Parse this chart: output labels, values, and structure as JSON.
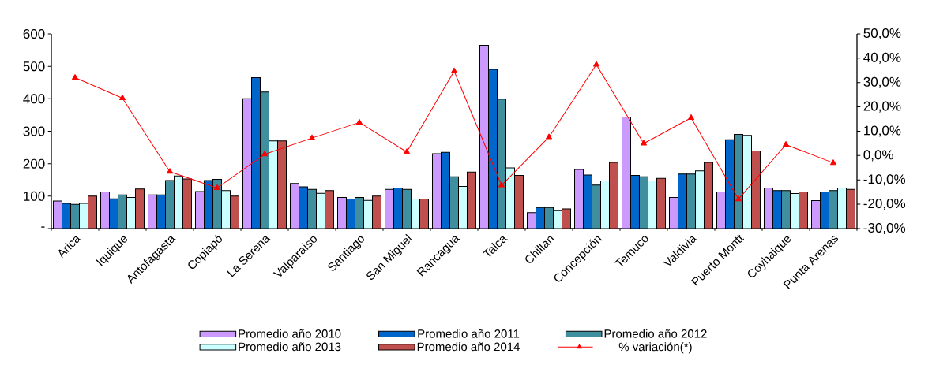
{
  "chart_data": {
    "type": "bar",
    "categories": [
      "Arica",
      "Iquique",
      "Antofagasta",
      "Copiapó",
      "La Serena",
      "Valparaíso",
      "Santiago",
      "San Miguel",
      "Rancagua",
      "Talca",
      "Chillan",
      "Concepción",
      "Temuco",
      "Valdivia",
      "Puerto Montt",
      "Coyhaique",
      "Punta Arenas"
    ],
    "series": [
      {
        "name": "Promedio año 2010",
        "color": "#cc99ff",
        "values": [
          85,
          113,
          104,
          114,
          400,
          139,
          96,
          121,
          231,
          565,
          49,
          182,
          344,
          96,
          113,
          125,
          86
        ]
      },
      {
        "name": "Promedio año 2011",
        "color": "#0066cc",
        "values": [
          78,
          92,
          104,
          148,
          465,
          129,
          91,
          125,
          235,
          491,
          65,
          165,
          164,
          168,
          274,
          117,
          113
        ]
      },
      {
        "name": "Promedio año 2012",
        "color": "#3f8f9f",
        "values": [
          75,
          104,
          148,
          152,
          421,
          121,
          96,
          121,
          160,
          399,
          65,
          134,
          160,
          168,
          290,
          117,
          117
        ]
      },
      {
        "name": "Promedio año 2013",
        "color": "#ccffff",
        "values": [
          78,
          96,
          162,
          117,
          270,
          109,
          87,
          91,
          130,
          187,
          55,
          147,
          147,
          178,
          287,
          108,
          125
        ]
      },
      {
        "name": "Promedio año 2014",
        "color": "#c0504d",
        "values": [
          100,
          122,
          153,
          100,
          270,
          117,
          100,
          91,
          174,
          164,
          61,
          204,
          155,
          204,
          239,
          113,
          121
        ]
      },
      {
        "name": "% variación(*)",
        "type": "line",
        "axis": "y2",
        "color": "#ff0000",
        "values": [
          32.0,
          23.6,
          -6.6,
          -13.3,
          0.5,
          7.2,
          13.6,
          1.5,
          34.7,
          -12.2,
          7.6,
          37.4,
          5.0,
          15.5,
          -17.9,
          4.5,
          -3.0
        ]
      }
    ],
    "ylim": [
      0,
      600
    ],
    "yticks": [
      {
        "value": 0,
        "label": "-"
      },
      100,
      200,
      300,
      400,
      500,
      600
    ],
    "y2lim": [
      -30,
      50
    ],
    "y2ticks": [
      {
        "value": -30,
        "label": "-30,0%"
      },
      {
        "value": -20,
        "label": "-20,0%"
      },
      {
        "value": -10,
        "label": "-10,0%"
      },
      {
        "value": 0,
        "label": "0,0%"
      },
      {
        "value": 10,
        "label": "10,0%"
      },
      {
        "value": 20,
        "label": "20,0%"
      },
      {
        "value": 30,
        "label": "30,0%"
      },
      {
        "value": 40,
        "label": "40,0%"
      },
      {
        "value": 50,
        "label": "50,0%"
      }
    ],
    "legend": "bottom",
    "marker": "triangle"
  }
}
